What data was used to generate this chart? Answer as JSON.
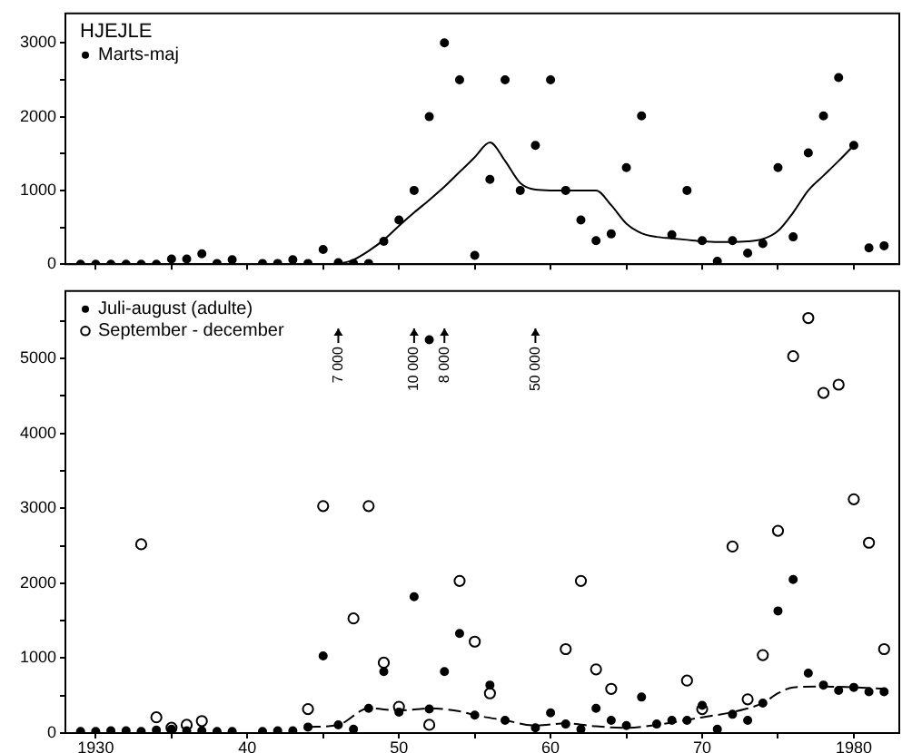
{
  "chart_data": [
    {
      "type": "scatter",
      "title": "HJEJLE",
      "xlim": [
        1928,
        1983
      ],
      "xticks": [
        {
          "value": 1930,
          "label": null
        },
        {
          "value": 1935,
          "label": null
        },
        {
          "value": 1940,
          "label": null
        },
        {
          "value": 1945,
          "label": null
        },
        {
          "value": 1950,
          "label": null
        },
        {
          "value": 1955,
          "label": null
        },
        {
          "value": 1960,
          "label": null
        },
        {
          "value": 1965,
          "label": null
        },
        {
          "value": 1970,
          "label": null
        },
        {
          "value": 1975,
          "label": null
        },
        {
          "value": 1980,
          "label": null
        }
      ],
      "ylim": [
        0,
        3400
      ],
      "yticks": [
        0,
        {
          "value": 500,
          "label": null
        },
        1000,
        {
          "value": 1500,
          "label": null
        },
        2000,
        {
          "value": 2500,
          "label": null
        },
        3000
      ],
      "tick_labels": "y",
      "legend": "top left",
      "series": [
        {
          "name": "Marts-maj",
          "type": "scatter",
          "color": "#000000",
          "marker": "circle",
          "x": [
            1929,
            1930,
            1931,
            1932,
            1933,
            1934,
            1935,
            1936,
            1937,
            1938,
            1939,
            1941,
            1942,
            1943,
            1944,
            1945,
            1946,
            1947,
            1948,
            1949,
            1950,
            1951,
            1952,
            1953,
            1954,
            1955,
            1956,
            1957,
            1958,
            1959,
            1960,
            1961,
            1962,
            1963,
            1964,
            1965,
            1966,
            1968,
            1969,
            1970,
            1971,
            1972,
            1973,
            1974,
            1975,
            1976,
            1977,
            1978,
            1979,
            1980,
            1981,
            1982
          ],
          "values": [
            0,
            0,
            0,
            0,
            0,
            0,
            70,
            70,
            140,
            10,
            60,
            10,
            10,
            60,
            10,
            200,
            20,
            10,
            10,
            310,
            600,
            1000,
            2000,
            3000,
            2500,
            120,
            1150,
            2500,
            1000,
            1610,
            2500,
            1000,
            600,
            320,
            410,
            1310,
            2010,
            400,
            1000,
            320,
            40,
            320,
            150,
            280,
            1310,
            370,
            1510,
            2010,
            2530,
            1610,
            220,
            250
          ]
        },
        {
          "type": "line",
          "color": "#000000",
          "marker": "none",
          "line_style": "solid",
          "x": [
            1946,
            1947,
            1948,
            1949,
            1950,
            1951,
            1952,
            1953,
            1954,
            1955,
            1956,
            1957,
            1958,
            1959,
            1960,
            1961,
            1962,
            1963,
            1964,
            1965,
            1966,
            1967,
            1968,
            1969,
            1970,
            1971,
            1972,
            1973,
            1974,
            1975,
            1976,
            1977,
            1978,
            1979,
            1980
          ],
          "values": [
            0,
            60,
            180,
            330,
            520,
            700,
            870,
            1050,
            1250,
            1450,
            1650,
            1400,
            1100,
            1010,
            1000,
            1000,
            1000,
            1000,
            800,
            550,
            420,
            370,
            350,
            330,
            310,
            300,
            300,
            310,
            340,
            450,
            700,
            1000,
            1200,
            1400,
            1610
          ]
        }
      ]
    },
    {
      "type": "scatter",
      "xlim": [
        1928,
        1983
      ],
      "xticks": [
        1930,
        {
          "value": 1935,
          "label": null
        },
        {
          "value": 1940,
          "label": "40"
        },
        {
          "value": 1945,
          "label": null
        },
        {
          "value": 1950,
          "label": "50"
        },
        {
          "value": 1955,
          "label": null
        },
        {
          "value": 1960,
          "label": "60"
        },
        {
          "value": 1965,
          "label": null
        },
        {
          "value": 1970,
          "label": "70"
        },
        {
          "value": 1975,
          "label": null
        },
        1980
      ],
      "ylim": [
        0,
        5900
      ],
      "yticks": [
        0,
        {
          "value": 500,
          "label": null
        },
        1000,
        {
          "value": 1500,
          "label": null
        },
        2000,
        {
          "value": 2500,
          "label": null
        },
        3000,
        {
          "value": 3500,
          "label": null
        },
        4000,
        {
          "value": 4500,
          "label": null
        },
        5000,
        {
          "value": 5500,
          "label": null
        }
      ],
      "legend": "top left",
      "annotations": [
        {
          "text": "7 000",
          "x": 1946,
          "y": 5400
        },
        {
          "text": "10 000",
          "x": 1951,
          "y": 5400
        },
        {
          "text": "8 000",
          "x": 1953,
          "y": 5400
        },
        {
          "text": "50 000",
          "x": 1959,
          "y": 5400
        }
      ],
      "series": [
        {
          "name": "Juli-august (adulte)",
          "type": "scatter",
          "color": "#000000",
          "marker": "circle",
          "x": [
            1929,
            1930,
            1931,
            1932,
            1933,
            1934,
            1935,
            1936,
            1937,
            1938,
            1939,
            1941,
            1942,
            1943,
            1944,
            1945,
            1946,
            1947,
            1948,
            1949,
            1950,
            1951,
            1952,
            1953,
            1954,
            1955,
            1956,
            1957,
            1959,
            1960,
            1961,
            1962,
            1963,
            1964,
            1965,
            1966,
            1967,
            1968,
            1969,
            1970,
            1971,
            1972,
            1973,
            1974,
            1975,
            1976,
            1977,
            1978,
            1979,
            1980,
            1981,
            1982,
            1952
          ],
          "values": [
            20,
            20,
            30,
            30,
            20,
            40,
            50,
            30,
            30,
            20,
            20,
            20,
            30,
            30,
            80,
            1030,
            110,
            50,
            330,
            820,
            280,
            1820,
            320,
            820,
            1330,
            240,
            640,
            170,
            70,
            270,
            120,
            50,
            330,
            170,
            100,
            480,
            120,
            170,
            170,
            370,
            50,
            250,
            170,
            400,
            1630,
            2050,
            800,
            640,
            570,
            610,
            550,
            550,
            5250
          ]
        },
        {
          "name": "September - december",
          "type": "scatter",
          "color": "#000000",
          "marker": "circle-open",
          "x": [
            1933,
            1934,
            1935,
            1936,
            1937,
            1944,
            1945,
            1947,
            1948,
            1949,
            1950,
            1952,
            1954,
            1955,
            1956,
            1961,
            1962,
            1963,
            1964,
            1969,
            1970,
            1972,
            1973,
            1974,
            1975,
            1976,
            1977,
            1978,
            1979,
            1980,
            1981,
            1982
          ],
          "values": [
            2520,
            210,
            70,
            110,
            160,
            320,
            3030,
            1530,
            3030,
            940,
            350,
            110,
            2030,
            1220,
            530,
            1120,
            2030,
            850,
            590,
            700,
            320,
            2490,
            450,
            1040,
            2700,
            5030,
            5540,
            4540,
            4650,
            3120,
            2540,
            1120
          ]
        },
        {
          "type": "line",
          "color": "#000000",
          "marker": "none",
          "line_style": "dashed",
          "x": [
            1944,
            1946,
            1948,
            1950,
            1952,
            1954,
            1955,
            1957,
            1959,
            1961,
            1963,
            1965,
            1967,
            1970,
            1972,
            1974,
            1975,
            1976,
            1978,
            1980,
            1982
          ],
          "values": [
            80,
            110,
            330,
            300,
            330,
            290,
            240,
            170,
            100,
            130,
            90,
            70,
            110,
            210,
            280,
            400,
            530,
            610,
            620,
            610,
            590
          ]
        }
      ]
    }
  ]
}
